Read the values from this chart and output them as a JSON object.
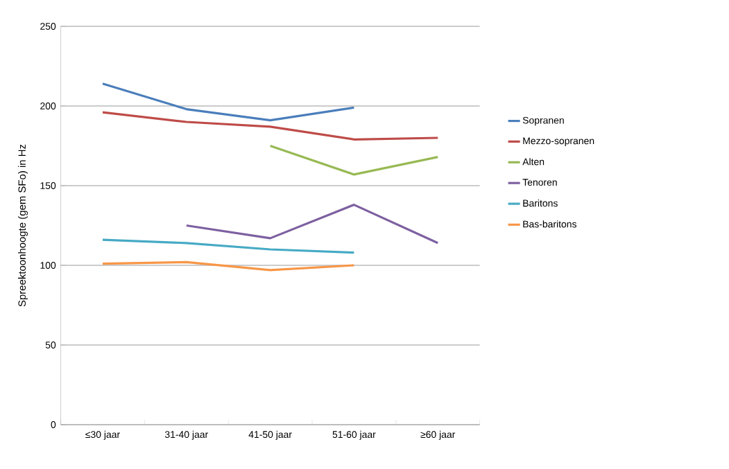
{
  "chart_data": {
    "type": "line",
    "ylabel": "Spreektoonhoogte (gem SFo) in Hz",
    "categories": [
      "≤30 jaar",
      "31-40 jaar",
      "41-50 jaar",
      "51-60 jaar",
      "≥60 jaar"
    ],
    "series": [
      {
        "name": "Sopranen",
        "color": "#4a7ebb",
        "values": [
          214,
          198,
          191,
          199,
          null
        ]
      },
      {
        "name": "Mezzo-sopranen",
        "color": "#be4b48",
        "values": [
          196,
          190,
          187,
          179,
          180
        ]
      },
      {
        "name": "Alten",
        "color": "#98b954",
        "values": [
          null,
          null,
          175,
          157,
          168
        ]
      },
      {
        "name": "Tenoren",
        "color": "#7d60a0",
        "values": [
          null,
          125,
          117,
          138,
          114
        ]
      },
      {
        "name": "Baritons",
        "color": "#46aac5",
        "values": [
          116,
          114,
          110,
          108,
          null
        ]
      },
      {
        "name": "Bas-baritons",
        "color": "#f79646",
        "values": [
          101,
          102,
          97,
          100,
          null
        ]
      }
    ],
    "ylim": [
      0,
      250
    ],
    "yticks": [
      0,
      50,
      100,
      150,
      200,
      250
    ],
    "grid": "y",
    "legend": "right",
    "marker": "none",
    "line_style": "solid"
  }
}
